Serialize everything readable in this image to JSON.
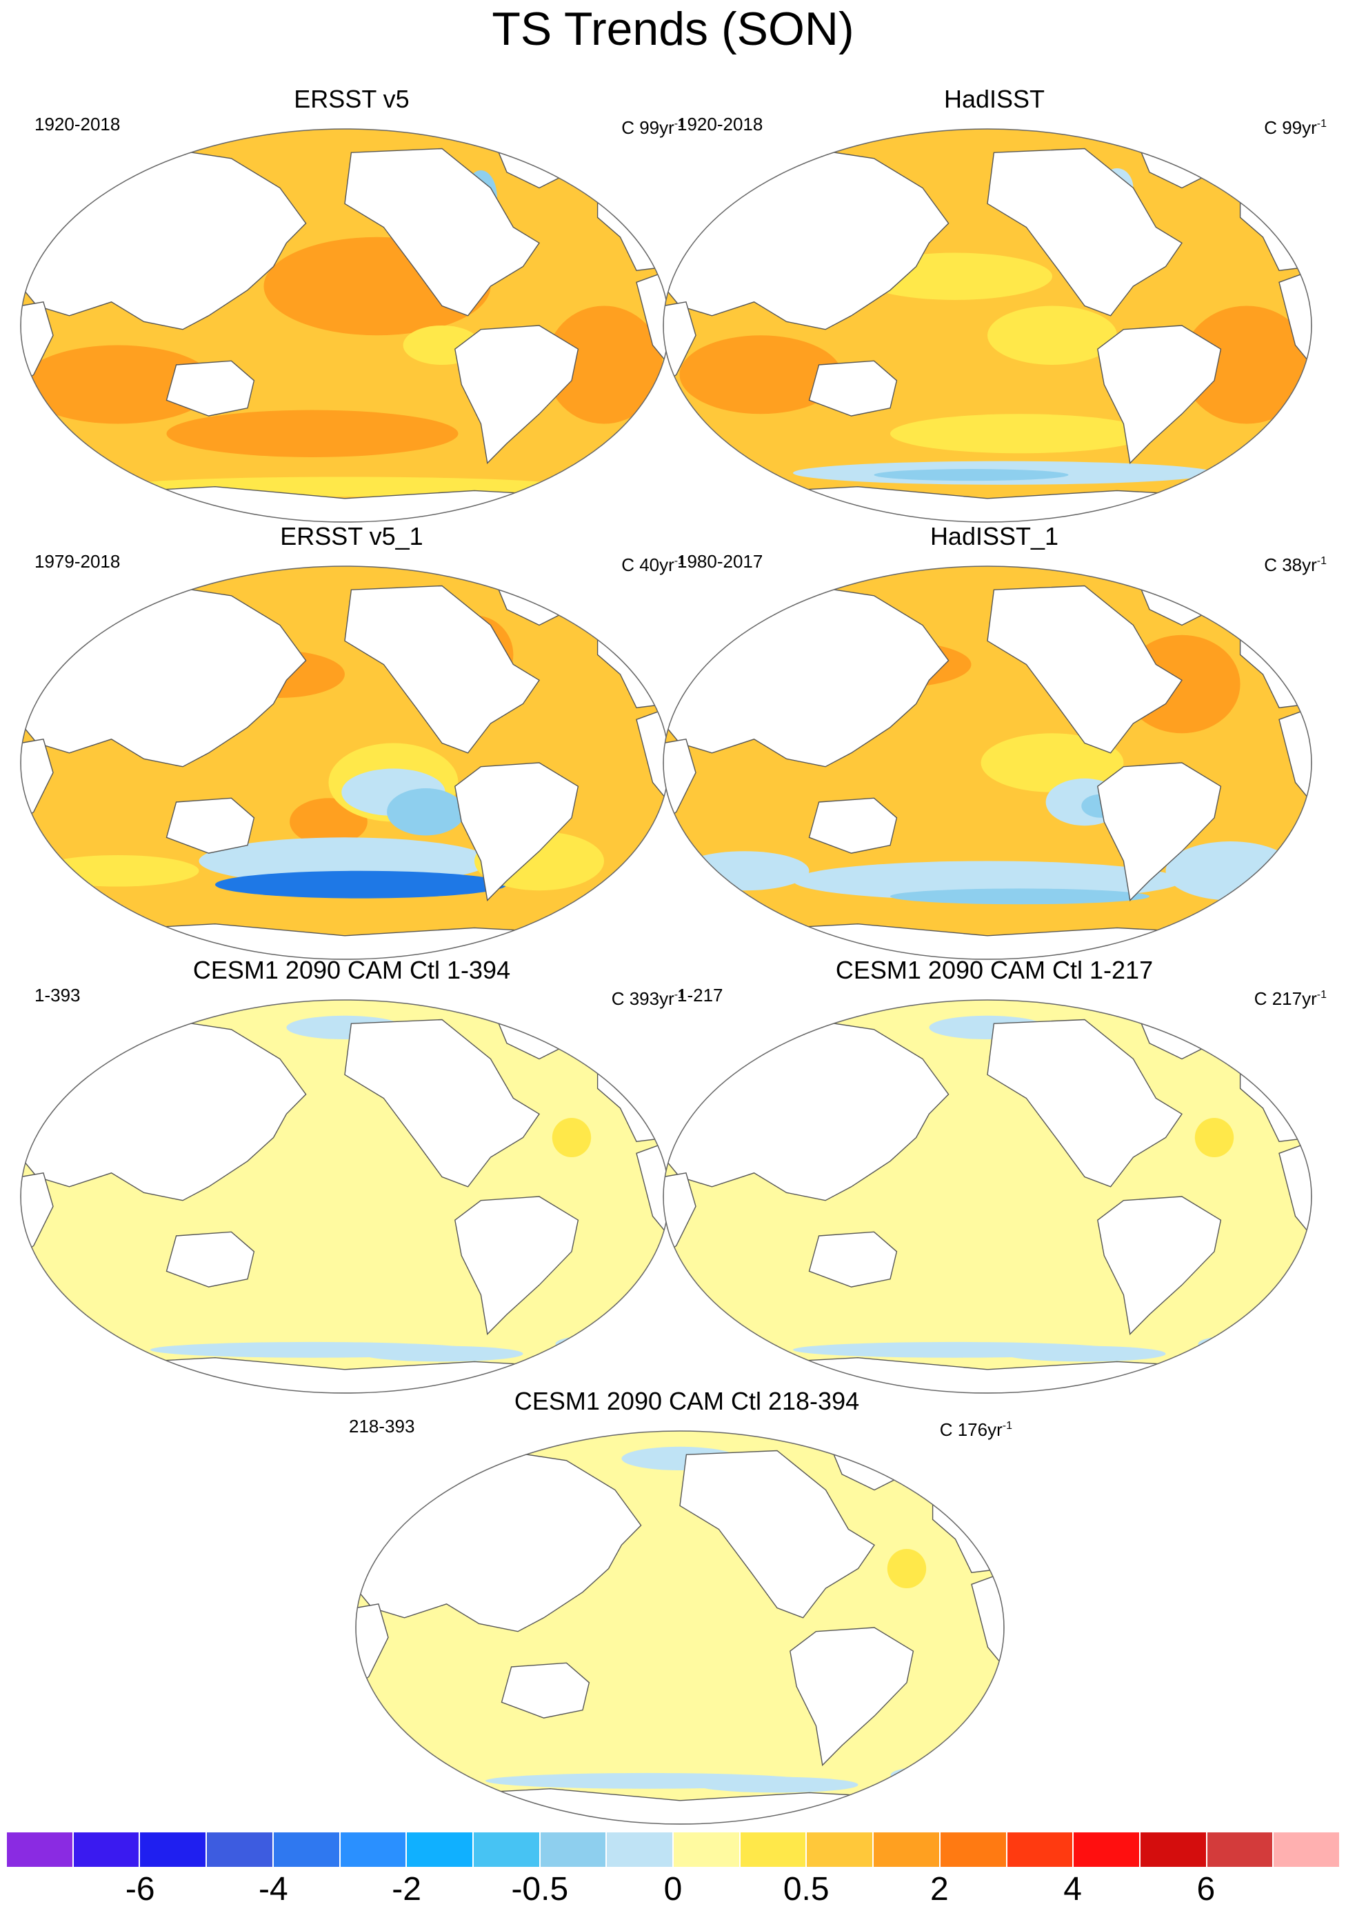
{
  "figure": {
    "title": "TS Trends (SON)"
  },
  "panels": [
    {
      "title": "ERSST v5",
      "years": "1920-2018",
      "units_prefix": "C ",
      "units_value": "99yr",
      "units_exp": "-1",
      "field": "warm_obs"
    },
    {
      "title": "HadISST",
      "years": "1920-2018",
      "units_prefix": "C ",
      "units_value": "99yr",
      "units_exp": "-1",
      "field": "warm_obs_noisy"
    },
    {
      "title": "ERSST v5_1",
      "years": "1979-2018",
      "units_prefix": "C ",
      "units_value": "40yr",
      "units_exp": "-1",
      "field": "recent_obs"
    },
    {
      "title": "HadISST_1",
      "years": "1980-2017",
      "units_prefix": "C ",
      "units_value": "38yr",
      "units_exp": "-1",
      "field": "recent_obs_noisy"
    },
    {
      "title": "CESM1 2090 CAM Ctl 1-394",
      "years": "1-393",
      "units_prefix": "C ",
      "units_value": "393yr",
      "units_exp": "-1",
      "field": "control"
    },
    {
      "title": "CESM1 2090 CAM Ctl 1-217",
      "years": "1-217",
      "units_prefix": "C ",
      "units_value": "217yr",
      "units_exp": "-1",
      "field": "control"
    },
    {
      "title": "CESM1 2090 CAM Ctl 218-394",
      "years": "218-393",
      "units_prefix": "C ",
      "units_value": "176yr",
      "units_exp": "-1",
      "field": "control"
    }
  ],
  "colorbar": {
    "colors": [
      "#8a2be2",
      "#3a1af0",
      "#1f1ff0",
      "#3d5ce0",
      "#2f78f0",
      "#2a90ff",
      "#10b0ff",
      "#47c3f3",
      "#8ecfee",
      "#bfe3f5",
      "#fffaa0",
      "#ffe84a",
      "#ffc83a",
      "#ffa020",
      "#ff7a12",
      "#ff3a10",
      "#ff0f0f",
      "#d40d0d",
      "#d33b3b",
      "#ffb0b0"
    ],
    "labels": [
      "-6",
      "-4",
      "-2",
      "-0.5",
      "0",
      "0.5",
      "2",
      "4",
      "6"
    ]
  },
  "legend": {
    "cold_strong": "#1e78e6",
    "cold": "#8ecfee",
    "cold_weak": "#bfe3f5",
    "neutral": "#fffaa0",
    "warm_weak": "#ffe84a",
    "warm": "#ffc83a",
    "warm_strong": "#ffa020",
    "hot": "#ff7a12"
  }
}
